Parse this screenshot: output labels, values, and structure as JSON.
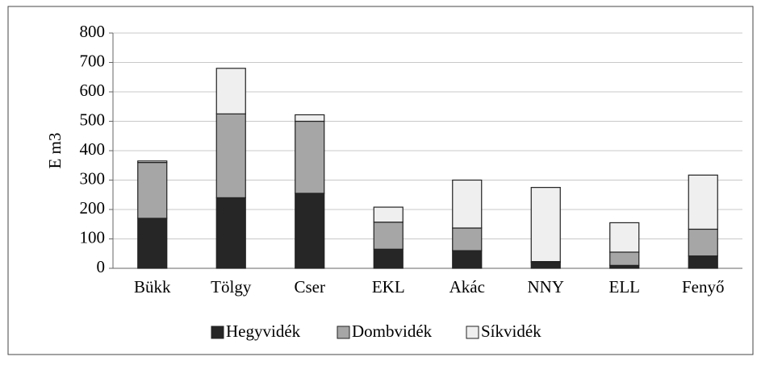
{
  "chart_data": {
    "type": "bar",
    "stacked": true,
    "ylabel": "E m3",
    "categories": [
      "Bükk",
      "Tölgy",
      "Cser",
      "EKL",
      "Akác",
      "NNY",
      "ELL",
      "Fenyő"
    ],
    "series": [
      {
        "name": "Hegyvidék",
        "color": "#262626",
        "values": [
          170,
          240,
          255,
          65,
          60,
          20,
          10,
          42
        ]
      },
      {
        "name": "Dombvidék",
        "color": "#a6a6a6",
        "values": [
          190,
          285,
          245,
          92,
          77,
          3,
          45,
          91
        ]
      },
      {
        "name": "Síkvidék",
        "color": "#efefef",
        "values": [
          5,
          155,
          22,
          51,
          163,
          252,
          100,
          184
        ]
      }
    ],
    "ylim": [
      0,
      800
    ],
    "yticks": [
      0,
      100,
      200,
      300,
      400,
      500,
      600,
      700,
      800
    ],
    "grid": true,
    "legend": "bottom"
  }
}
